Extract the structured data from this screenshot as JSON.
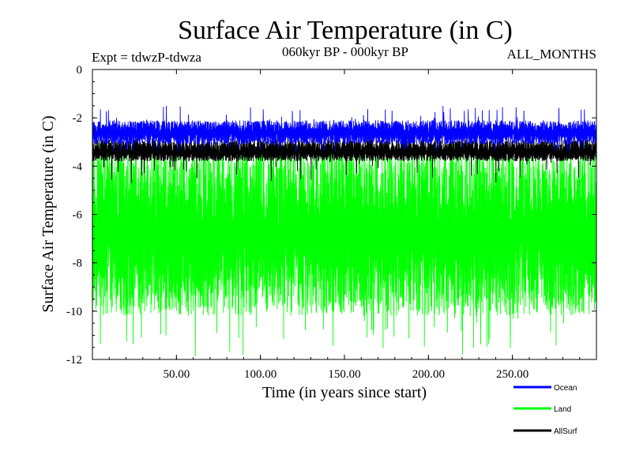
{
  "chart_data": {
    "type": "line",
    "title": "Surface Air Temperature (in C)",
    "subtitle_left": "Expt = tdwzP-tdwza",
    "subtitle_center": "060kyr BP - 000kyr BP",
    "subtitle_right": "ALL_MONTHS",
    "xlabel": "Time (in years since start)",
    "ylabel": "Surface Air Temperature (in C)",
    "xlim": [
      0.0,
      300.0
    ],
    "ylim": [
      -12,
      0
    ],
    "x_ticks": [
      50,
      100,
      150,
      200,
      250
    ],
    "x_tick_labels": [
      "50.00",
      "100.00",
      "150.00",
      "200.00",
      "250.00"
    ],
    "y_ticks": [
      0,
      -2,
      -4,
      -6,
      -8,
      -10,
      -12
    ],
    "y_tick_labels": [
      "0",
      "-2",
      "-4",
      "-6",
      "-8",
      "-10",
      "-12"
    ],
    "grid": false,
    "legend_position": "bottom-right, below plot",
    "monthly_samples": true,
    "series": [
      {
        "name": "Land",
        "color": "#00ff00",
        "mean": -6.6,
        "typical_range": [
          -10.2,
          -3.3
        ],
        "extreme_range": [
          -11.9,
          -2.9
        ]
      },
      {
        "name": "AllSurf",
        "color": "#000000",
        "mean": -3.4,
        "typical_range": [
          -3.8,
          -2.9
        ],
        "extreme_range": [
          -4.7,
          -2.8
        ]
      },
      {
        "name": "Ocean",
        "color": "#0000ff",
        "mean": -2.6,
        "typical_range": [
          -3.1,
          -2.1
        ],
        "extreme_range": [
          -3.4,
          -1.5
        ]
      }
    ],
    "legend": [
      {
        "name": "Ocean",
        "color": "#0000ff"
      },
      {
        "name": "Land",
        "color": "#00ff00"
      },
      {
        "name": "AllSurf",
        "color": "#000000"
      }
    ]
  }
}
